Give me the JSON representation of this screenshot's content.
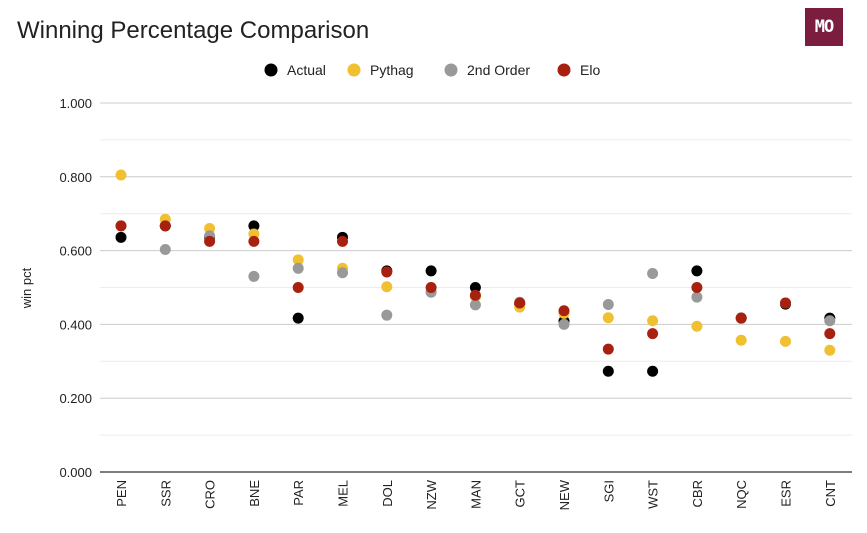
{
  "title": "Winning Percentage Comparison",
  "logo_text": "MO",
  "chart_data": {
    "type": "scatter",
    "title": "Winning Percentage Comparison",
    "xlabel": "",
    "ylabel": "win pct",
    "ylim": [
      0,
      1
    ],
    "yticks": [
      0,
      0.2,
      0.4,
      0.6,
      0.8,
      1.0
    ],
    "ytick_labels": [
      "0.000",
      "0.200",
      "0.400",
      "0.600",
      "0.800",
      "1.000"
    ],
    "gridlines": true,
    "legend_position": "top",
    "categories": [
      "PEN",
      "SSR",
      "CRO",
      "BNE",
      "PAR",
      "MEL",
      "DOL",
      "NZW",
      "MAN",
      "GCT",
      "NEW",
      "SGI",
      "WST",
      "CBR",
      "NQC",
      "ESR",
      "CNT"
    ],
    "series": [
      {
        "name": "Actual",
        "color": "#000000",
        "values": [
          0.636,
          0.667,
          0.636,
          0.667,
          0.417,
          0.636,
          0.545,
          0.545,
          0.5,
          0.455,
          0.409,
          0.273,
          0.273,
          0.545,
          0.417,
          0.455,
          0.417
        ]
      },
      {
        "name": "Pythag",
        "color": "#f0c030",
        "values": [
          0.805,
          0.685,
          0.66,
          0.645,
          0.575,
          0.552,
          0.502,
          0.488,
          0.475,
          0.447,
          0.43,
          0.418,
          0.41,
          0.395,
          0.357,
          0.354,
          0.33
        ]
      },
      {
        "name": "2nd Order",
        "color": "#999999",
        "values": [
          0.667,
          0.603,
          0.64,
          0.53,
          0.552,
          0.54,
          0.425,
          0.487,
          0.453,
          0.46,
          0.4,
          0.454,
          0.538,
          0.474,
          0.418,
          0.458,
          0.41
        ]
      },
      {
        "name": "Elo",
        "color": "#a82010",
        "values": [
          0.667,
          0.667,
          0.625,
          0.625,
          0.5,
          0.625,
          0.542,
          0.5,
          0.479,
          0.458,
          0.437,
          0.333,
          0.375,
          0.5,
          0.417,
          0.458,
          0.375
        ]
      }
    ]
  }
}
